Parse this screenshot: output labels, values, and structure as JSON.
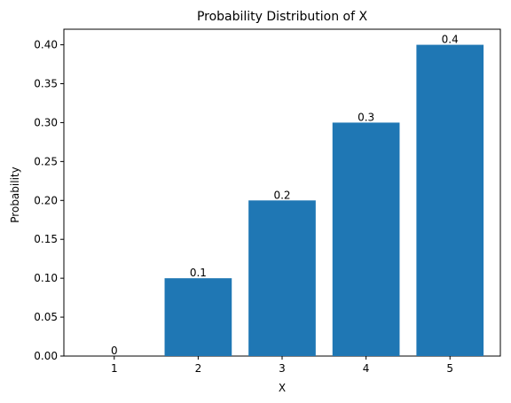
{
  "chart_data": {
    "type": "bar",
    "title": "Probability Distribution of X",
    "xlabel": "X",
    "ylabel": "Probability",
    "categories": [
      "1",
      "2",
      "3",
      "4",
      "5"
    ],
    "values": [
      0,
      0.1,
      0.2,
      0.3,
      0.4
    ],
    "data_labels": [
      "0",
      "0.1",
      "0.2",
      "0.3",
      "0.4"
    ],
    "ylim": [
      0,
      0.42
    ],
    "yticks": [
      0.0,
      0.05,
      0.1,
      0.15,
      0.2,
      0.25,
      0.3,
      0.35,
      0.4
    ],
    "ytick_labels": [
      "0.00",
      "0.05",
      "0.10",
      "0.15",
      "0.20",
      "0.25",
      "0.30",
      "0.35",
      "0.40"
    ],
    "grid": false,
    "bar_color": "#1f77b4"
  }
}
